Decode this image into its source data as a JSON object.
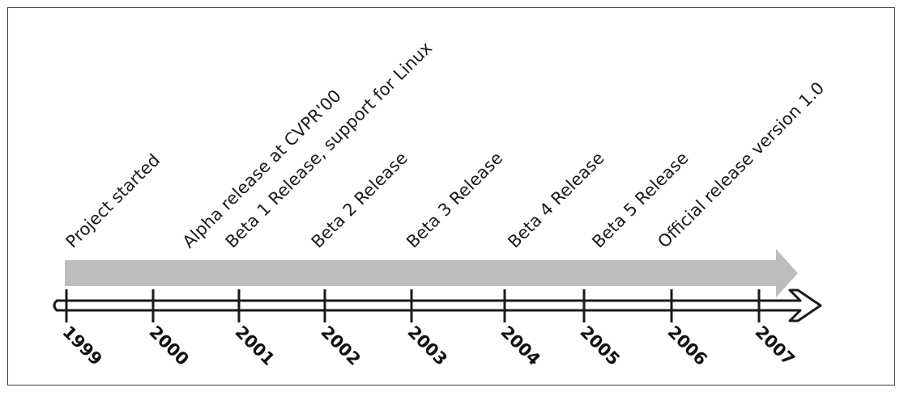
{
  "colors": {
    "band": "#bdbdbd",
    "axis": "#1a1a1a",
    "text": "#1a1a1a",
    "border": "#3a3a3a"
  },
  "timeline": {
    "years": [
      "1999",
      "2000",
      "2001",
      "2002",
      "2003",
      "2004",
      "2005",
      "2006",
      "2007"
    ],
    "events": [
      {
        "label": "Project started",
        "date": 1999.0
      },
      {
        "label": "Alpha release at CVPR'00",
        "date": 2000.35
      },
      {
        "label": "Beta 1 Release, support for Linux",
        "date": 2000.85
      },
      {
        "label": "Beta 2 Release",
        "date": 2001.85
      },
      {
        "label": "Beta 3 Release",
        "date": 2002.95
      },
      {
        "label": "Beta 4 Release",
        "date": 2004.05
      },
      {
        "label": "Beta 5 Release",
        "date": 2005.1
      },
      {
        "label": "Official release version 1.0",
        "date": 2005.85
      }
    ]
  }
}
